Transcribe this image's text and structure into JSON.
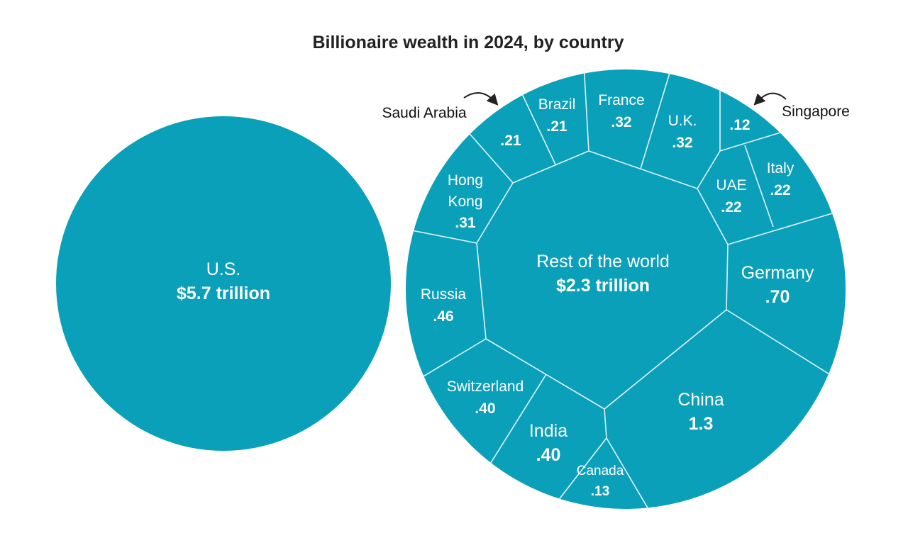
{
  "chart_data": {
    "type": "voronoi-treemap",
    "title": "Billionaire wealth in 2024, by country",
    "unit": "trillion",
    "colors": {
      "fill": "#0aa0b9",
      "border": "#dff3f7",
      "text": "#ffffff"
    },
    "standalone": {
      "name": "U.S.",
      "label": "$5.7 trillion",
      "value": 5.7
    },
    "group": {
      "name": "Rest of the world",
      "label": "$2.3 trillion",
      "value": 2.3
    },
    "cells": [
      {
        "name": "China",
        "label": "1.3",
        "value": 1.3
      },
      {
        "name": "Germany",
        "label": ".70",
        "value": 0.7
      },
      {
        "name": "Russia",
        "label": ".46",
        "value": 0.46
      },
      {
        "name": "Switzerland",
        "label": ".40",
        "value": 0.4
      },
      {
        "name": "India",
        "label": ".40",
        "value": 0.4
      },
      {
        "name": "France",
        "label": ".32",
        "value": 0.32
      },
      {
        "name": "U.K.",
        "label": ".32",
        "value": 0.32
      },
      {
        "name": "Hong Kong",
        "label": ".31",
        "value": 0.31,
        "lines": [
          "Hong",
          "Kong"
        ]
      },
      {
        "name": "UAE",
        "label": ".22",
        "value": 0.22
      },
      {
        "name": "Italy",
        "label": ".22",
        "value": 0.22
      },
      {
        "name": "Brazil",
        "label": ".21",
        "value": 0.21
      },
      {
        "name": "Saudi Arabia",
        "label": ".21",
        "value": 0.21
      },
      {
        "name": "Canada",
        "label": ".13",
        "value": 0.13
      },
      {
        "name": "Singapore",
        "label": ".12",
        "value": 0.12
      }
    ]
  }
}
